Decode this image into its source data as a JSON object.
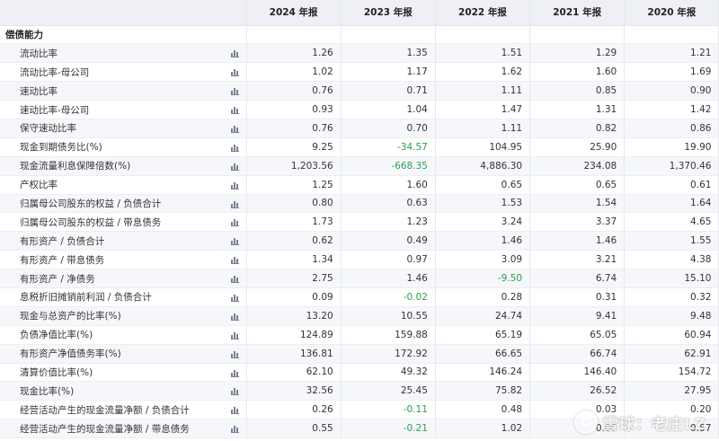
{
  "header": {
    "label_col": "",
    "years": [
      "2024 年报",
      "2023 年报",
      "2022 年报",
      "2021 年报",
      "2020 年报"
    ]
  },
  "section": {
    "title": "偿债能力"
  },
  "rows": [
    {
      "label": "流动比率",
      "values": [
        "1.26",
        "1.35",
        "1.51",
        "1.29",
        "1.21"
      ]
    },
    {
      "label": "流动比率-母公司",
      "values": [
        "1.02",
        "1.17",
        "1.62",
        "1.60",
        "1.69"
      ]
    },
    {
      "label": "速动比率",
      "values": [
        "0.76",
        "0.71",
        "1.11",
        "0.85",
        "0.90"
      ]
    },
    {
      "label": "速动比率-母公司",
      "values": [
        "0.93",
        "1.04",
        "1.47",
        "1.31",
        "1.42"
      ]
    },
    {
      "label": "保守速动比率",
      "values": [
        "0.76",
        "0.70",
        "1.11",
        "0.82",
        "0.86"
      ]
    },
    {
      "label": "现金到期债务比(%)",
      "values": [
        "9.25",
        "-34.57",
        "104.95",
        "25.90",
        "19.90"
      ]
    },
    {
      "label": "现金流量利息保障倍数(%)",
      "values": [
        "1,203.56",
        "-668.35",
        "4,886.30",
        "234.08",
        "1,370.46"
      ]
    },
    {
      "label": "产权比率",
      "values": [
        "1.25",
        "1.60",
        "0.65",
        "0.65",
        "0.61"
      ]
    },
    {
      "label": "归属母公司股东的权益 / 负债合计",
      "values": [
        "0.80",
        "0.63",
        "1.53",
        "1.54",
        "1.64"
      ]
    },
    {
      "label": "归属母公司股东的权益 / 带息债务",
      "values": [
        "1.73",
        "1.23",
        "3.24",
        "3.37",
        "4.65"
      ]
    },
    {
      "label": "有形资产 / 负债合计",
      "values": [
        "0.62",
        "0.49",
        "1.46",
        "1.46",
        "1.55"
      ]
    },
    {
      "label": "有形资产 / 带息债务",
      "values": [
        "1.34",
        "0.97",
        "3.09",
        "3.21",
        "4.38"
      ]
    },
    {
      "label": "有形资产 / 净债务",
      "values": [
        "2.75",
        "1.46",
        "-9.50",
        "6.74",
        "15.10"
      ]
    },
    {
      "label": "息税折旧摊销前利润 / 负债合计",
      "values": [
        "0.09",
        "-0.02",
        "0.28",
        "0.31",
        "0.32"
      ]
    },
    {
      "label": "现金与总资产的比率(%)",
      "values": [
        "13.20",
        "10.55",
        "24.74",
        "9.41",
        "9.48"
      ]
    },
    {
      "label": "负债净值比率(%)",
      "values": [
        "124.89",
        "159.88",
        "65.19",
        "65.05",
        "60.94"
      ]
    },
    {
      "label": "有形资产净值债务率(%)",
      "values": [
        "136.81",
        "172.92",
        "66.65",
        "66.74",
        "62.91"
      ]
    },
    {
      "label": "清算价值比率(%)",
      "values": [
        "62.10",
        "49.32",
        "146.24",
        "146.40",
        "154.72"
      ]
    },
    {
      "label": "现金比率(%)",
      "values": [
        "32.56",
        "25.45",
        "75.82",
        "26.52",
        "27.95"
      ]
    },
    {
      "label": "经营活动产生的现金流量净额 / 负债合计",
      "values": [
        "0.26",
        "-0.11",
        "0.48",
        "0.03",
        "0.20"
      ]
    },
    {
      "label": "经营活动产生的现金流量净额 / 带息债务",
      "values": [
        "0.55",
        "-0.21",
        "1.02",
        "0.06",
        "0.57"
      ]
    }
  ],
  "icons": {
    "row_chart": "bar-chart-icon",
    "watermark_logo": "xueqiu-logo-icon"
  },
  "colors": {
    "negative": "#2e9e4f",
    "header_bg": "#eef0f6",
    "stripe_bg": "#f6f7fb"
  },
  "watermark": {
    "text": "雪球：老庄LZ"
  }
}
